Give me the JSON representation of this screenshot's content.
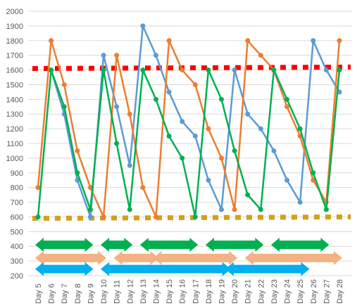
{
  "chart_data": {
    "type": "line",
    "title": "",
    "xlabel": "",
    "ylabel": "",
    "ylim": [
      200,
      2000
    ],
    "y_ticks": [
      200,
      300,
      400,
      500,
      600,
      700,
      800,
      900,
      1000,
      1100,
      1200,
      1300,
      1400,
      1500,
      1600,
      1700,
      1800,
      1900,
      2000
    ],
    "grid": "horizontal",
    "categories": [
      "Day 5",
      "Day 6",
      "Day 7",
      "Day 8",
      "Day 9",
      "Day 10",
      "Day 11",
      "Day 12",
      "Day 13",
      "Day 14",
      "Day 15",
      "Day 16",
      "Day 17",
      "Day 18",
      "Day 19",
      "Day 20",
      "Day 21",
      "Day 22",
      "Day 23",
      "Day 24",
      "Day 25",
      "Day 26",
      "Day 27",
      "Day 28"
    ],
    "series": [
      {
        "color": "#5b9bd5",
        "values": [
          null,
          1600,
          1300,
          850,
          600,
          1700,
          1350,
          950,
          1900,
          1700,
          1450,
          1250,
          1150,
          850,
          650,
          1600,
          1300,
          1200,
          1050,
          850,
          700,
          1800,
          1600,
          1450
        ]
      },
      {
        "color": "#ed7d31",
        "values": [
          800,
          1800,
          1500,
          1050,
          800,
          600,
          1700,
          1300,
          800,
          600,
          1800,
          1600,
          1500,
          1200,
          1000,
          650,
          1800,
          1700,
          1600,
          1350,
          1150,
          850,
          700,
          1800
        ]
      },
      {
        "color": "#00b050",
        "values": [
          600,
          1600,
          1350,
          900,
          650,
          1600,
          1100,
          650,
          1600,
          1400,
          1150,
          1000,
          600,
          1600,
          1400,
          1050,
          750,
          650,
          1600,
          1400,
          1200,
          900,
          650,
          1600
        ]
      }
    ],
    "reference_lines": [
      {
        "color": "#ff0000",
        "style": "dotted",
        "start": 1610,
        "end": 1620
      },
      {
        "color": "#d4a017",
        "style": "dotted",
        "start": 590,
        "end": 600
      }
    ],
    "range_arrows": [
      {
        "color": "#00b050",
        "y": 410,
        "ranges": [
          [
            "Day 5",
            "Day 9"
          ],
          [
            "Day 10",
            "Day 12"
          ],
          [
            "Day 13",
            "Day 17"
          ],
          [
            "Day 18",
            "Day 22"
          ],
          [
            "Day 23",
            "Day 27"
          ]
        ]
      },
      {
        "color": "#f4b183",
        "y": 320,
        "ranges": [
          [
            "Day 5",
            "Day 10"
          ],
          [
            "Day 11",
            "Day 14"
          ],
          [
            "Day 14",
            "Day 20"
          ],
          [
            "Day 21",
            "Day 28"
          ]
        ]
      },
      {
        "color": "#00b0f0",
        "y": 245,
        "ranges": [
          [
            "Day 5",
            "Day 9"
          ],
          [
            "Day 10",
            "Day 19.5"
          ],
          [
            "Day 19.5",
            "Day 25.5"
          ]
        ]
      }
    ]
  }
}
